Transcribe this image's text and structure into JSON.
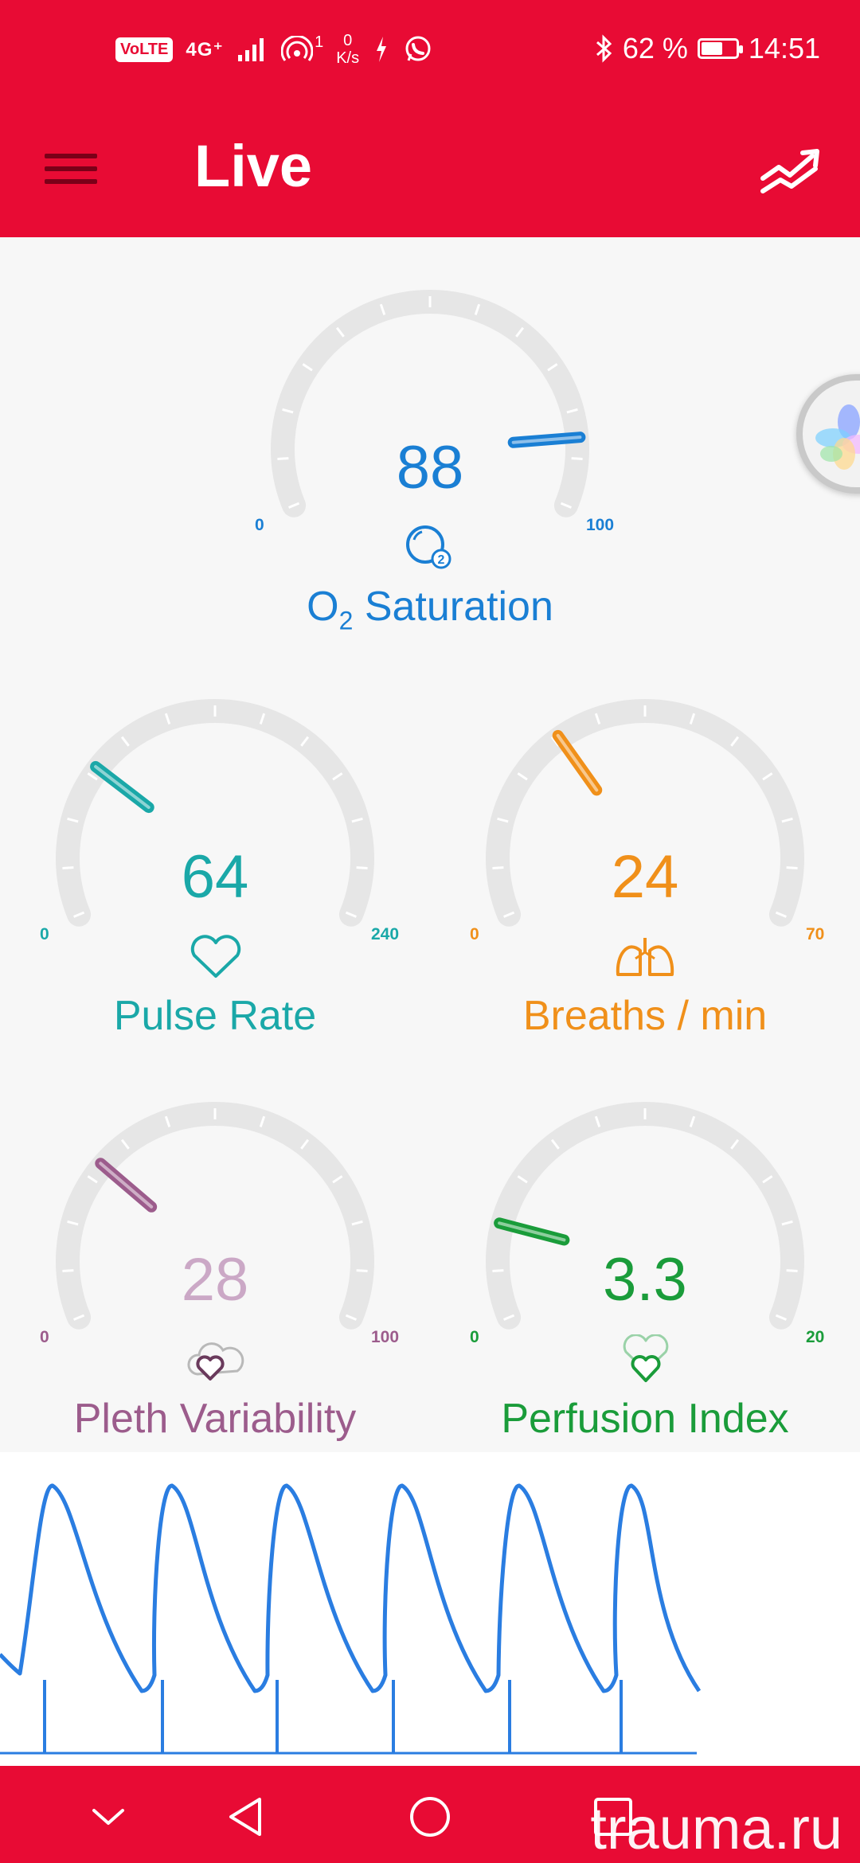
{
  "status_bar": {
    "volte": "VoLTE",
    "network": "4G⁺",
    "hotspot_count": "1",
    "speed_value": "0",
    "speed_unit": "K/s",
    "battery_percent": "62 %",
    "battery_level": 0.62,
    "time": "14:51",
    "icons": [
      "volte-icon",
      "signal-icon",
      "hotspot-icon",
      "vpn-icon",
      "whatsapp-icon",
      "bluetooth-icon",
      "battery-icon"
    ]
  },
  "app_bar": {
    "title": "Live",
    "icons": [
      "menu-icon",
      "trends-icon"
    ]
  },
  "gauges": {
    "spo2": {
      "value": "88",
      "min": "0",
      "max": "100",
      "label_main": "O",
      "label_sub": "2",
      "label_rest": " Saturation",
      "color": "#1a7fd4",
      "icon": "oxygen-bubble-icon"
    },
    "pulse": {
      "value": "64",
      "min": "0",
      "max": "240",
      "label": "Pulse Rate",
      "color": "#1aa8a8",
      "icon": "heart-icon"
    },
    "breaths": {
      "value": "24",
      "min": "0",
      "max": "70",
      "label": "Breaths / min",
      "color": "#f0901a",
      "icon": "lungs-icon"
    },
    "pleth": {
      "value": "28",
      "min": "0",
      "max": "100",
      "label": "Pleth Variability",
      "color": "#9c5c8c",
      "value_color": "#cba8c6",
      "icon": "cloud-heart-icon"
    },
    "perfusion": {
      "value": "3.3",
      "min": "0",
      "max": "20",
      "label": "Perfusion Index",
      "color": "#1a9c3a",
      "icon": "double-heart-icon"
    }
  },
  "floating_button": {
    "icon": "assistant-flower-icon"
  },
  "waveform": {
    "color": "#2a7de1",
    "icon": "pleth-waveform"
  },
  "nav_bar": {
    "icons": [
      "collapse-icon",
      "back-icon",
      "home-icon",
      "recents-icon"
    ]
  },
  "watermark": "trauma.ru"
}
